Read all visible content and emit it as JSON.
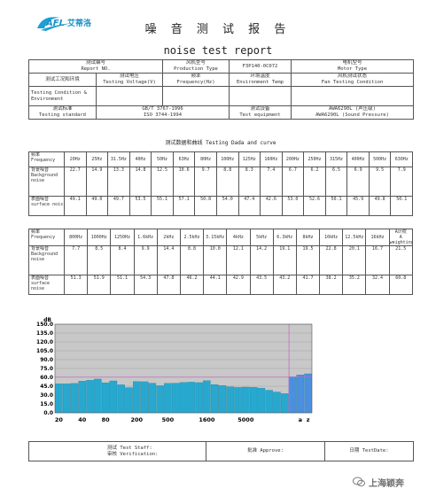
{
  "header": {
    "logo_text": "AFL艾蒂洛",
    "title_cn": "噪 音 测 试 报 告",
    "title_en": "noise test report"
  },
  "info": {
    "report_no_label_cn": "测试编号",
    "report_no_label_en": "Report NO.",
    "fan_model_label_cn": "风机型号",
    "fan_model_label_en": "Production Type",
    "fan_model_value": "F3P140-0C072",
    "motor_label_cn": "电机型号",
    "motor_label_en": "Motor Type",
    "condition_label_cn": "测试工况和环境",
    "condition_label_en": "Testing Condition & Environment",
    "voltage_label_cn": "测试电压",
    "voltage_label_en": "Testing Voltage(V)",
    "freq_label_cn": "频率",
    "freq_label_en": "Frequency(Hz)",
    "env_label_cn": "环境温度",
    "env_label_en": "Environment Temp",
    "fan_status_label_cn": "风机测试状态",
    "fan_status_label_en": "Fan Testing Condition",
    "standard_label_cn": "测试标准",
    "standard_label_en": "Testing standard",
    "standard_value_1": "GB/T 3767-1996",
    "standard_value_2": "ISO 3744-1994",
    "equipment_label_cn": "测试设备",
    "equipment_label_en": "Test equipment",
    "equipment_value_1": "AWA6290L (声压级)",
    "equipment_value_2": "AWA6290L (Sound Pressure)"
  },
  "section_title": "测试数据和曲线  Testing Dada and curve",
  "rows": {
    "freq_cn": "频率",
    "freq_en": "Frequency",
    "bg_cn": "背景噪音",
    "bg_en": "Background noise",
    "sf_cn": "表面噪音",
    "sf_en": "surface nois",
    "sf_en2": "surface noise"
  },
  "table1": {
    "freqs": [
      "20Hz",
      "25Hz",
      "31.5Hz",
      "40Hz",
      "50Hz",
      "63Hz",
      "80Hz",
      "100Hz",
      "125Hz",
      "160Hz",
      "200Hz",
      "250Hz",
      "315Hz",
      "400Hz",
      "500Hz",
      "630Hz"
    ],
    "background": [
      "22.7",
      "14.9",
      "13.3",
      "14.8",
      "12.5",
      "10.6",
      "9.7",
      "8.8",
      "8.3",
      "7.4",
      "6.7",
      "6.2",
      "6.5",
      "6.9",
      "9.5",
      "7.9"
    ],
    "surface": [
      "49.1",
      "49.0",
      "49.7",
      "53.5",
      "55.1",
      "57.1",
      "50.8",
      "54.0",
      "47.4",
      "42.6",
      "53.0",
      "52.6",
      "50.1",
      "45.9",
      "49.8",
      "50.1"
    ]
  },
  "table2": {
    "freqs": [
      "800Hz",
      "1000Hz",
      "1250Hz",
      "1.6kHz",
      "2kHz",
      "2.5kHz",
      "3.15kHz",
      "4kHz",
      "5kHz",
      "6.3kHz",
      "8kHz",
      "10kHz",
      "12.5kHz",
      "16kHz"
    ],
    "a_weight_cn": "A计权",
    "a_weight_en": "A weighting",
    "background": [
      "7.7",
      "8.5",
      "8.4",
      "9.9",
      "14.4",
      "8.8",
      "10.0",
      "12.1",
      "14.2",
      "19.1",
      "19.5",
      "22.8",
      "20.1",
      "16.7"
    ],
    "background_a": "21.5",
    "surface": [
      "51.3",
      "51.9",
      "51.1",
      "54.3",
      "47.8",
      "46.2",
      "44.1",
      "42.9",
      "43.5",
      "43.2",
      "41.7",
      "38.2",
      "35.2",
      "32.4"
    ],
    "surface_a": "60.8"
  },
  "chart_data": {
    "type": "bar",
    "y_unit_label": "dB",
    "y_ticks": [
      "150.0",
      "135.0",
      "120.0",
      "105.0",
      "90.0",
      "75.0",
      "60.0",
      "45.0",
      "30.0",
      "15.0",
      "0.0"
    ],
    "ylim": [
      0,
      150
    ],
    "x_tick_labels": [
      "20",
      "40",
      "80",
      "200",
      "500",
      "1600",
      "5000",
      "a",
      "z"
    ],
    "series": [
      {
        "values": [
          49.1,
          49.0,
          49.7,
          53.5,
          55.1,
          57.1,
          50.8,
          54.0,
          47.4,
          42.6,
          53.0,
          52.6,
          50.1,
          45.9,
          49.8,
          50.1,
          51.3,
          51.9,
          51.1,
          54.3,
          47.8,
          46.2,
          44.1,
          42.9,
          43.5,
          43.2,
          41.7,
          38.2,
          35.2,
          32.4,
          60.8,
          64.0,
          66.0
        ]
      }
    ],
    "colors": {
      "background": "#c8c8c8",
      "bar": "#27a9cf",
      "bar_edge": "#1e7ea3",
      "a_bar": "#4b8fe0",
      "marker": "#cc66cc"
    },
    "grid": true
  },
  "footer": {
    "staff_label_cn": "测试",
    "staff_label_en": "Test Staff:",
    "verify_label_cn": "审核",
    "verify_label_en": "Verification:",
    "approve_label_cn": "批准",
    "approve_label_en": "Approve:",
    "date_label_cn": "日期",
    "date_label_en": "TestDate:"
  },
  "watermark": "上海颖奔"
}
